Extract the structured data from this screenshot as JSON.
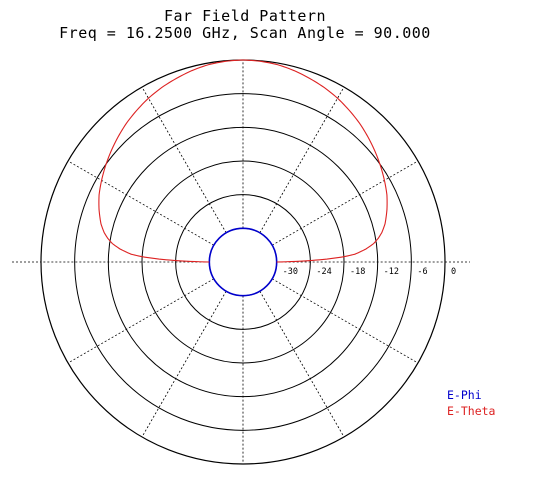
{
  "chart_data": {
    "type": "polar-line",
    "title": "Far Field Pattern",
    "subtitle": "Freq = 16.2500 GHz, Scan Angle = 90.000",
    "radial_range_db": [
      -36,
      0
    ],
    "radial_ticks": [
      "-30",
      "-24",
      "-18",
      "-12",
      "-6",
      "0"
    ],
    "radial_tick_values": [
      -30,
      -24,
      -18,
      -12,
      -6,
      0
    ],
    "angular_grid_deg": [
      0,
      30,
      60,
      90,
      120,
      150,
      180,
      210,
      240,
      270,
      300,
      330
    ],
    "grid": true,
    "legend_position": "bottom-right",
    "series": [
      {
        "name": "E-Phi",
        "color": "#0000cc",
        "theta_deg": [
          -180,
          -150,
          -120,
          -90,
          -60,
          -30,
          0,
          30,
          60,
          90,
          120,
          150,
          180
        ],
        "values_db": [
          -30,
          -30,
          -30,
          -30,
          -30,
          -30,
          -30,
          -30,
          -30,
          -30,
          -30,
          -30,
          -30
        ]
      },
      {
        "name": "E-Theta",
        "color": "#dd2222",
        "theta_deg": [
          -90,
          -89,
          -88,
          -87,
          -86,
          -85,
          -84,
          -82,
          -80,
          -78,
          -75,
          -70,
          -65,
          -60,
          -55,
          -50,
          -45,
          -40,
          -35,
          -30,
          -25,
          -20,
          -15,
          -10,
          -5,
          0,
          5,
          10,
          15,
          20,
          25,
          30,
          35,
          40,
          45,
          50,
          55,
          60,
          65,
          70,
          75,
          78,
          80,
          82,
          84,
          85,
          86,
          87,
          88,
          89,
          90
        ],
        "values_db": [
          -30,
          -25,
          -21,
          -18,
          -16,
          -15,
          -14,
          -12.5,
          -11.5,
          -10.7,
          -9.8,
          -8.7,
          -7.7,
          -6.9,
          -6.1,
          -5.3,
          -4.5,
          -3.7,
          -3.0,
          -2.3,
          -1.7,
          -1.2,
          -0.7,
          -0.3,
          -0.1,
          0,
          -0.1,
          -0.3,
          -0.7,
          -1.2,
          -1.7,
          -2.3,
          -3.0,
          -3.7,
          -4.5,
          -5.3,
          -6.1,
          -6.9,
          -7.7,
          -8.7,
          -9.8,
          -10.7,
          -11.5,
          -12.5,
          -14,
          -15,
          -16,
          -18,
          -21,
          -25,
          -30
        ]
      }
    ]
  }
}
